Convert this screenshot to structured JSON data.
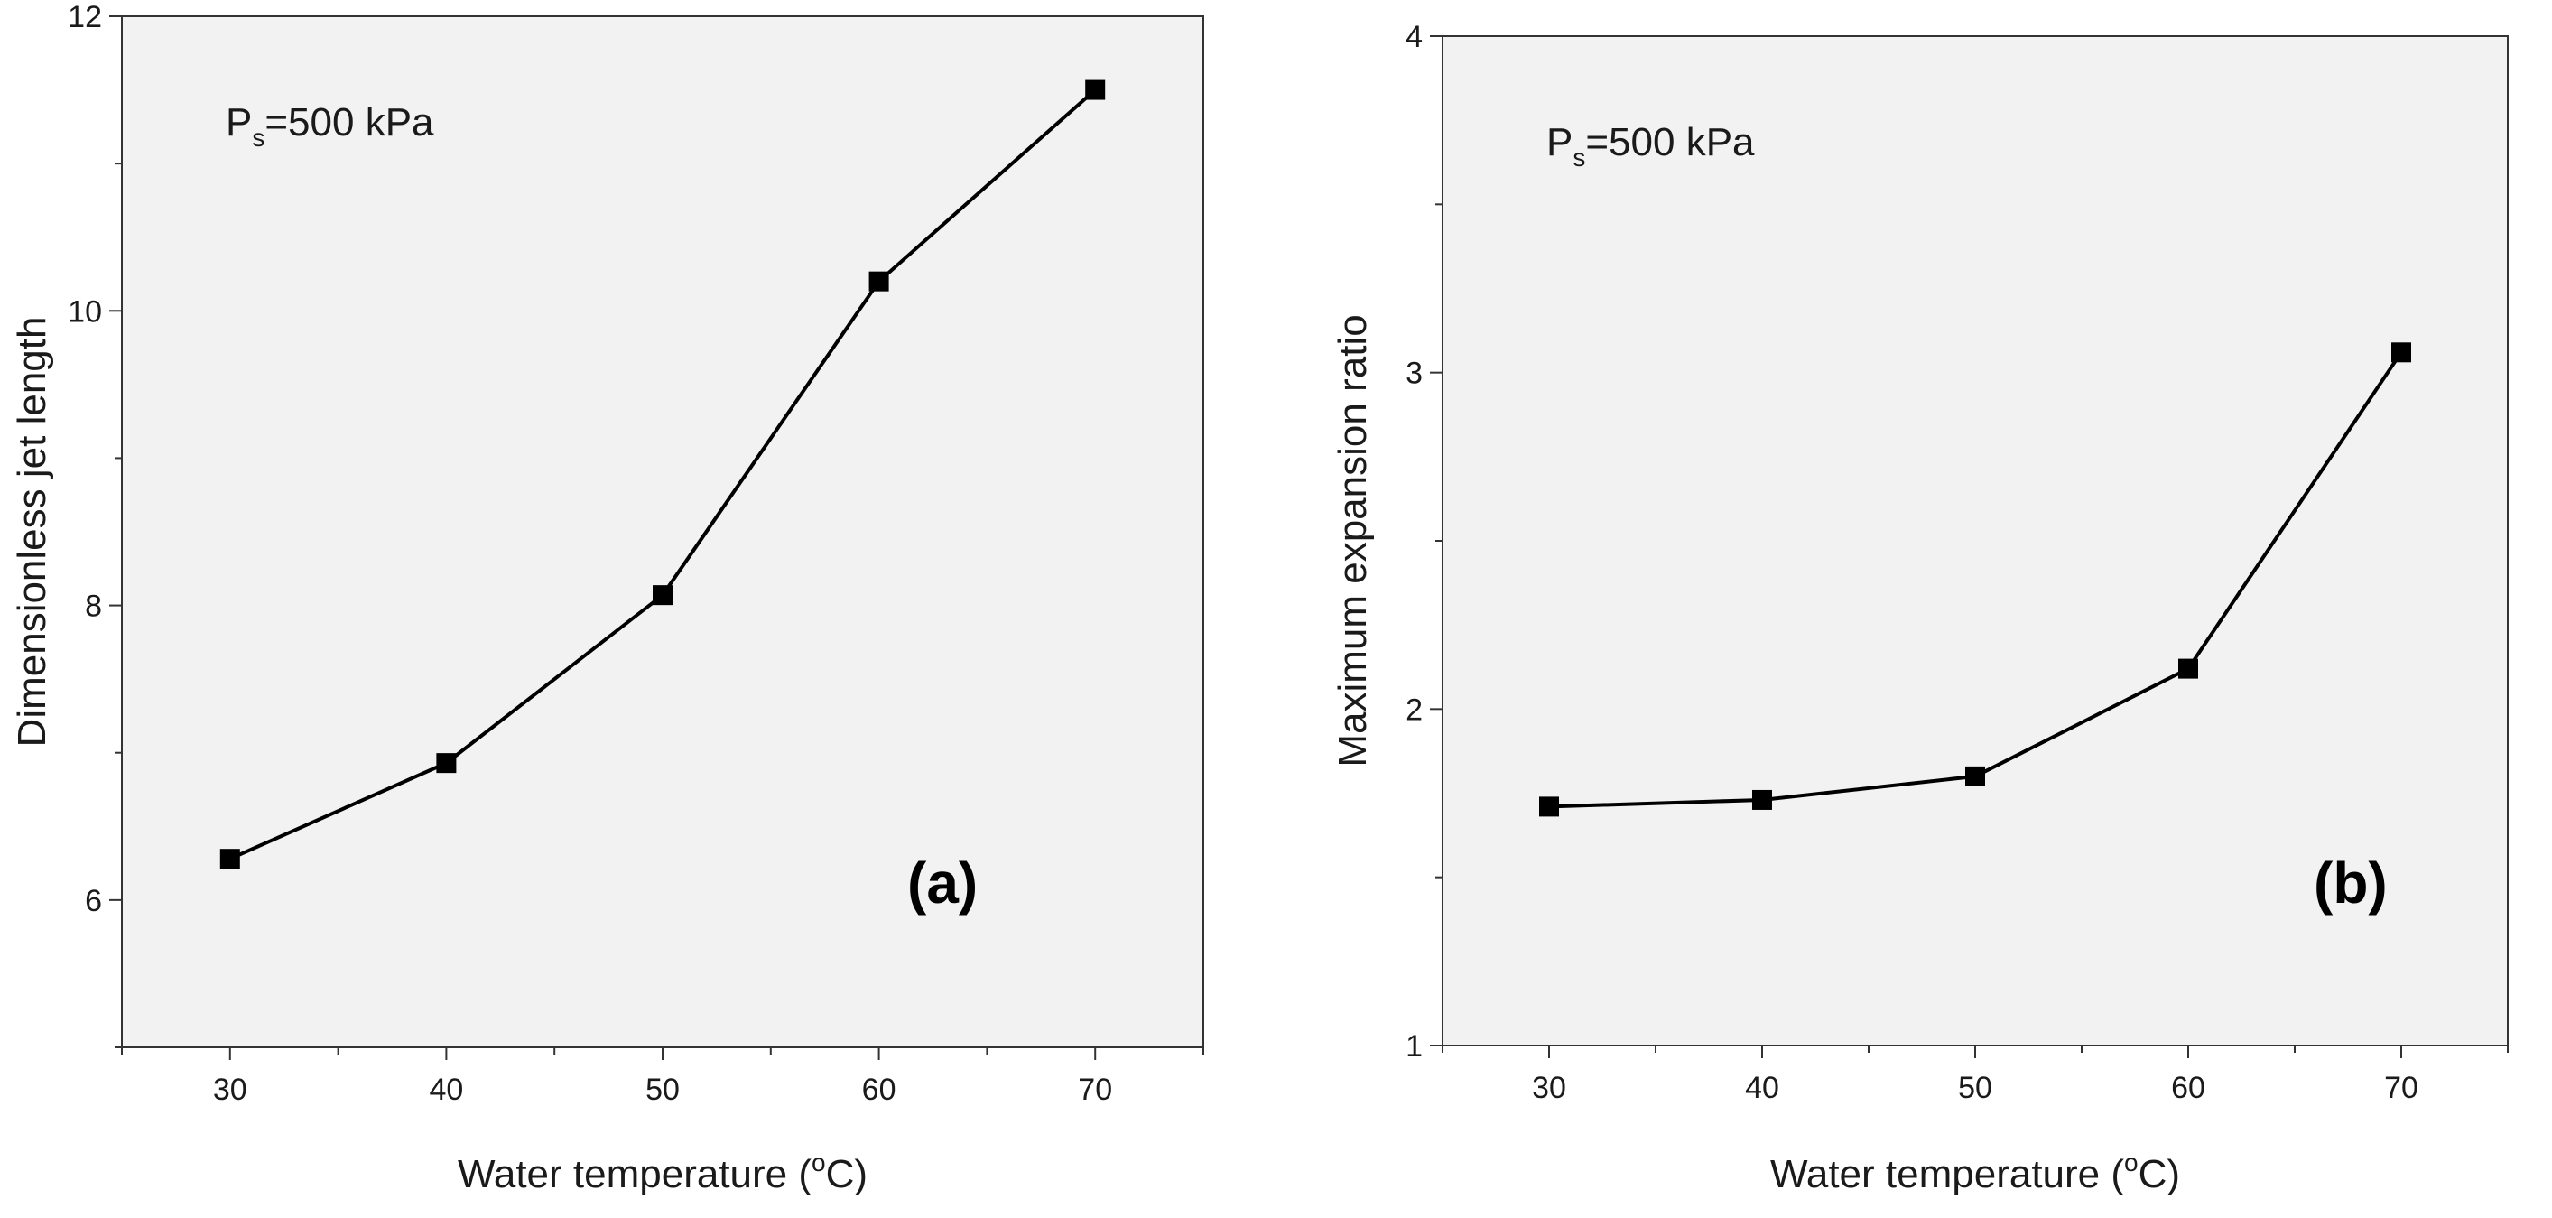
{
  "chart_data": [
    {
      "type": "line",
      "panel_label": "(a)",
      "title": "",
      "xlabel": "Water temperature (",
      "xlabel_sup": "o",
      "xlabel_tail": "C)",
      "ylabel": "Dimensionless jet length",
      "annotation_main": "P",
      "annotation_sub": "s",
      "annotation_tail": "=500 kPa",
      "x": [
        30,
        40,
        50,
        60,
        70
      ],
      "y": [
        6.28,
        6.93,
        8.07,
        10.2,
        11.5
      ],
      "xlim": [
        25,
        75
      ],
      "ylim": [
        5,
        12
      ],
      "xticks": [
        30,
        40,
        50,
        60,
        70
      ],
      "yticks": [
        6,
        8,
        10,
        12
      ],
      "xtick_labels": [
        "30",
        "40",
        "50",
        "60",
        "70"
      ],
      "ytick_labels": [
        "6",
        "8",
        "10",
        "12"
      ],
      "marker": "square",
      "color": "#000000",
      "plot_background": "#f2f2f2"
    },
    {
      "type": "line",
      "panel_label": "(b)",
      "title": "",
      "xlabel": "Water temperature (",
      "xlabel_sup": "o",
      "xlabel_tail": "C)",
      "ylabel": "Maximum expansion ratio",
      "annotation_main": "P",
      "annotation_sub": "s",
      "annotation_tail": "=500 kPa",
      "x": [
        30,
        40,
        50,
        60,
        70
      ],
      "y": [
        1.71,
        1.73,
        1.8,
        2.12,
        3.06
      ],
      "xlim": [
        25,
        75
      ],
      "ylim": [
        1,
        4
      ],
      "xticks": [
        30,
        40,
        50,
        60,
        70
      ],
      "yticks": [
        1,
        2,
        3,
        4
      ],
      "xtick_labels": [
        "30",
        "40",
        "50",
        "60",
        "70"
      ],
      "ytick_labels": [
        "1",
        "2",
        "3",
        "4"
      ],
      "marker": "square",
      "color": "#000000",
      "plot_background": "#f2f2f2"
    }
  ]
}
